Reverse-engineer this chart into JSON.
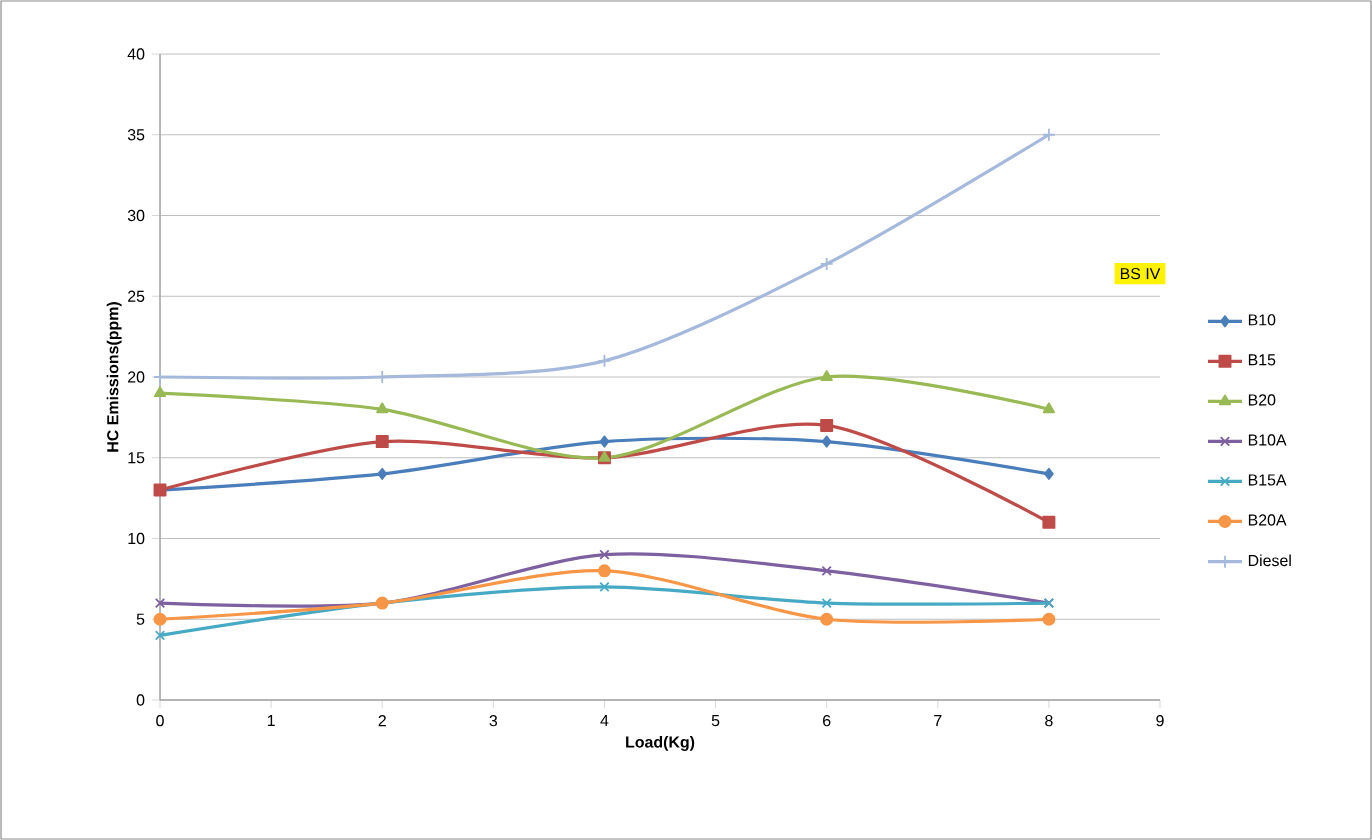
{
  "chart_data": {
    "type": "line",
    "xlabel": "Load(Kg)",
    "ylabel": "HC Emissions(ppm)",
    "x": [
      0,
      2,
      4,
      6,
      8
    ],
    "xlim": [
      0,
      9
    ],
    "xticks": [
      0,
      1,
      2,
      3,
      4,
      5,
      6,
      7,
      8,
      9
    ],
    "ylim": [
      0,
      40
    ],
    "yticks": [
      0,
      5,
      10,
      15,
      20,
      25,
      30,
      35,
      40
    ],
    "grid": "y",
    "legend": "right",
    "annotations": [
      "BS IV"
    ],
    "series": [
      {
        "name": "B10",
        "color": "#4a7ebb",
        "marker": "diamond",
        "values": [
          13,
          14,
          16,
          16,
          14
        ]
      },
      {
        "name": "B15",
        "color": "#be4b48",
        "marker": "square",
        "values": [
          13,
          16,
          15,
          17,
          11
        ]
      },
      {
        "name": "B20",
        "color": "#98b954",
        "marker": "triangle",
        "values": [
          19,
          18,
          15,
          20,
          18
        ]
      },
      {
        "name": "B10A",
        "color": "#7d60a0",
        "marker": "cross",
        "values": [
          6,
          6,
          9,
          8,
          6
        ]
      },
      {
        "name": "B15A",
        "color": "#46aac5",
        "marker": "cross",
        "values": [
          4,
          6,
          7,
          6,
          6
        ]
      },
      {
        "name": "B20A",
        "color": "#f79646",
        "marker": "circle",
        "values": [
          5,
          6,
          8,
          5,
          5
        ]
      },
      {
        "name": "Diesel",
        "color": "#a5b9dc",
        "marker": "plus",
        "values": [
          20,
          20,
          21,
          27,
          35
        ]
      }
    ]
  }
}
